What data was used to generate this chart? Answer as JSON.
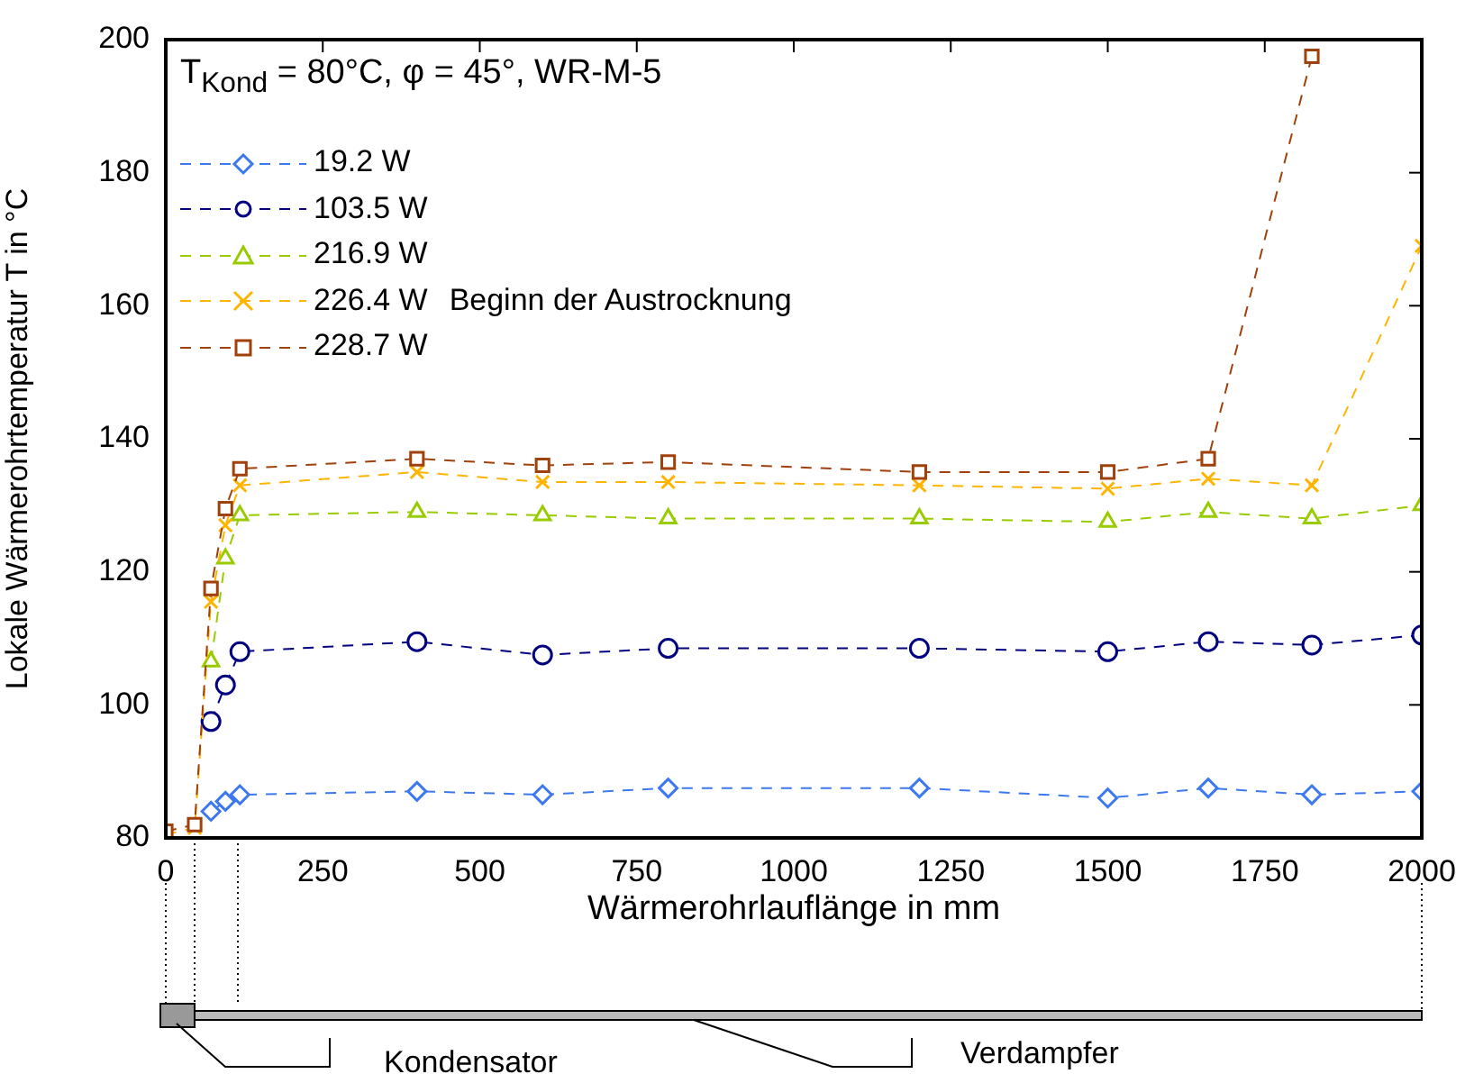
{
  "chart_data": {
    "type": "line",
    "title": "T$_{Kond}$ = 80°C, φ = 45°, WR-M-5",
    "xlabel": "Wärmerohrlauflänge in mm",
    "ylabel": "Lokale Wärmerohrtemperatur T in °C",
    "x": [
      0,
      46,
      72,
      95,
      118,
      400,
      600,
      800,
      1200,
      1500,
      1660,
      1825,
      2000
    ],
    "series": [
      {
        "name": "19.2 W",
        "color": "#3c78f0",
        "marker": "diamond",
        "values": [
          null,
          null,
          84,
          85.5,
          86.5,
          87,
          86.5,
          87.5,
          87.5,
          86,
          87.5,
          86.5,
          87
        ]
      },
      {
        "name": "103.5 W",
        "color": "#000080",
        "marker": "circle",
        "values": [
          null,
          null,
          97.5,
          103,
          108,
          109.5,
          107.5,
          108.5,
          108.5,
          108,
          109.5,
          109,
          110.5
        ]
      },
      {
        "name": "216.9 W",
        "color": "#99cc00",
        "marker": "triangle",
        "values": [
          null,
          null,
          106.5,
          122,
          128.5,
          129,
          128.5,
          128,
          128,
          127.5,
          129,
          128,
          130
        ]
      },
      {
        "name": "226.4 W",
        "color": "#ffb400",
        "marker": "cross",
        "values": [
          80.5,
          81.5,
          115.5,
          127,
          133,
          135,
          133.5,
          133.5,
          133,
          132.5,
          134,
          133,
          169
        ]
      },
      {
        "name": "228.7 W",
        "color": "#a0400a",
        "marker": "square",
        "values": [
          81,
          82,
          117.5,
          129.5,
          135.5,
          137,
          136,
          136.5,
          135,
          135,
          137,
          197.5,
          null
        ]
      }
    ],
    "line_style": "dashed",
    "xlim": [
      0,
      2000
    ],
    "xticks": [
      0,
      250,
      500,
      750,
      1000,
      1250,
      1500,
      1750,
      2000
    ],
    "ylim": [
      80,
      200
    ],
    "yticks": [
      80,
      100,
      120,
      140,
      160,
      180,
      200
    ],
    "grid": false,
    "legend": "top left",
    "annotations": [
      "Beginn der Austrocknung",
      "Kondensator",
      "Verdampfer"
    ]
  }
}
